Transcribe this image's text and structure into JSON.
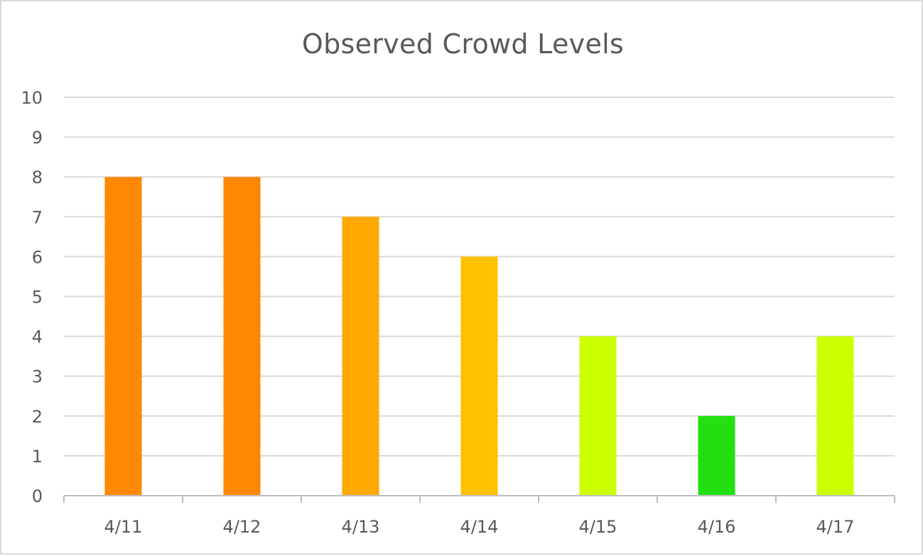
{
  "chart_data": {
    "type": "bar",
    "title": "Observed Crowd Levels",
    "xlabel": "",
    "ylabel": "",
    "categories": [
      "4/11",
      "4/12",
      "4/13",
      "4/14",
      "4/15",
      "4/16",
      "4/17"
    ],
    "values": [
      8,
      8,
      7,
      6,
      4,
      2,
      4
    ],
    "bar_colors": [
      "#FF8800",
      "#FF8800",
      "#FFA800",
      "#FFC000",
      "#CCFF00",
      "#22E010",
      "#CCFF00"
    ],
    "ylim": [
      0,
      10
    ],
    "yticks": [
      0,
      1,
      2,
      3,
      4,
      5,
      6,
      7,
      8,
      9,
      10
    ],
    "grid": true,
    "legend": "none"
  }
}
